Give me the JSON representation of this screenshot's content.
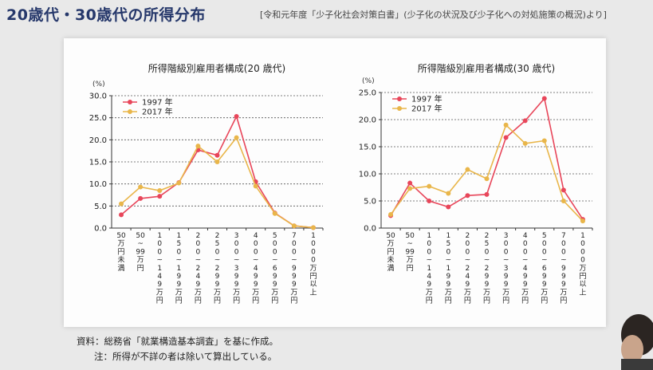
{
  "slide": {
    "title": "20歳代・30歳代の所得分布",
    "source": "[令和元年度「少子化社会対策白書」(少子化の状況及び少子化への対処施策の概況)より]"
  },
  "notes": {
    "line1": "資料：総務省「就業構造基本調査」を基に作成。",
    "line2": "注：所得が不詳の者は除いて算出している。"
  },
  "colors": {
    "s1997": "#e8465a",
    "s2017": "#e9b64a"
  },
  "chart_data": [
    {
      "type": "line",
      "title": "所得階級別雇用者構成(20 歳代)",
      "ylabel": "(%)",
      "ylim": [
        0,
        30
      ],
      "yticks": [
        "0.0",
        "5.0",
        "10.0",
        "15.0",
        "20.0",
        "25.0",
        "30.0"
      ],
      "grid": true,
      "legend": "top-left",
      "categories": [
        "50万円未満",
        "50~99万円",
        "100~149万円",
        "150~199万円",
        "200~249万円",
        "250~299万円",
        "300~399万円",
        "400~499万円",
        "500~699万円",
        "700~999万円",
        "1000万円以上"
      ],
      "category_labels": [
        [
          "50",
          "万",
          "円",
          "未",
          "満"
        ],
        [
          "50",
          "~",
          "99",
          "万",
          "円"
        ],
        [
          "1",
          "0",
          "0",
          "~",
          "1",
          "4",
          "9",
          "万",
          "円"
        ],
        [
          "1",
          "5",
          "0",
          "~",
          "1",
          "9",
          "9",
          "万",
          "円"
        ],
        [
          "2",
          "0",
          "0",
          "~",
          "2",
          "4",
          "9",
          "万",
          "円"
        ],
        [
          "2",
          "5",
          "0",
          "~",
          "2",
          "9",
          "9",
          "万",
          "円"
        ],
        [
          "3",
          "0",
          "0",
          "~",
          "3",
          "9",
          "9",
          "万",
          "円"
        ],
        [
          "4",
          "0",
          "0",
          "~",
          "4",
          "9",
          "9",
          "万",
          "円"
        ],
        [
          "5",
          "0",
          "0",
          "~",
          "6",
          "9",
          "9",
          "万",
          "円"
        ],
        [
          "7",
          "0",
          "0",
          "~",
          "9",
          "9",
          "9",
          "万",
          "円"
        ],
        [
          "1",
          "0",
          "0",
          "0",
          "万",
          "円",
          "以",
          "上"
        ]
      ],
      "series": [
        {
          "name": "1997 年",
          "values": [
            3.0,
            6.7,
            7.2,
            10.3,
            17.7,
            16.5,
            25.3,
            10.5,
            3.4,
            0.5,
            0.1
          ]
        },
        {
          "name": "2017 年",
          "values": [
            5.5,
            9.3,
            8.5,
            10.2,
            18.6,
            15.0,
            20.5,
            9.5,
            3.3,
            0.5,
            0.1
          ]
        }
      ]
    },
    {
      "type": "line",
      "title": "所得階級別雇用者構成(30 歳代)",
      "ylabel": "(%)",
      "ylim": [
        0,
        25
      ],
      "yticks": [
        "0.0",
        "5.0",
        "10.0",
        "15.0",
        "20.0",
        "25.0"
      ],
      "grid": true,
      "legend": "top-left",
      "categories": [
        "50万円未満",
        "50~99万円",
        "100~149万円",
        "150~199万円",
        "200~249万円",
        "250~299万円",
        "300~399万円",
        "400~499万円",
        "500~699万円",
        "700~999万円",
        "1000万円以上"
      ],
      "category_labels": [
        [
          "50",
          "万",
          "円",
          "未",
          "満"
        ],
        [
          "50",
          "~",
          "99",
          "万",
          "円"
        ],
        [
          "1",
          "0",
          "0",
          "~",
          "1",
          "4",
          "9",
          "万",
          "円"
        ],
        [
          "1",
          "5",
          "0",
          "~",
          "1",
          "9",
          "9",
          "万",
          "円"
        ],
        [
          "2",
          "0",
          "0",
          "~",
          "2",
          "4",
          "9",
          "万",
          "円"
        ],
        [
          "2",
          "5",
          "0",
          "~",
          "2",
          "9",
          "9",
          "万",
          "円"
        ],
        [
          "3",
          "0",
          "0",
          "~",
          "3",
          "9",
          "9",
          "万",
          "円"
        ],
        [
          "4",
          "0",
          "0",
          "~",
          "4",
          "9",
          "9",
          "万",
          "円"
        ],
        [
          "5",
          "0",
          "0",
          "~",
          "6",
          "9",
          "9",
          "万",
          "円"
        ],
        [
          "7",
          "0",
          "0",
          "~",
          "9",
          "9",
          "9",
          "万",
          "円"
        ],
        [
          "1",
          "0",
          "0",
          "0",
          "万",
          "円",
          "以",
          "上"
        ]
      ],
      "series": [
        {
          "name": "1997 年",
          "values": [
            2.3,
            8.3,
            5.0,
            3.9,
            6.0,
            6.2,
            16.7,
            19.8,
            23.9,
            7.0,
            1.6
          ]
        },
        {
          "name": "2017 年",
          "values": [
            2.5,
            7.3,
            7.7,
            6.4,
            10.8,
            9.1,
            19.0,
            15.6,
            16.1,
            5.0,
            1.3
          ]
        }
      ]
    }
  ]
}
